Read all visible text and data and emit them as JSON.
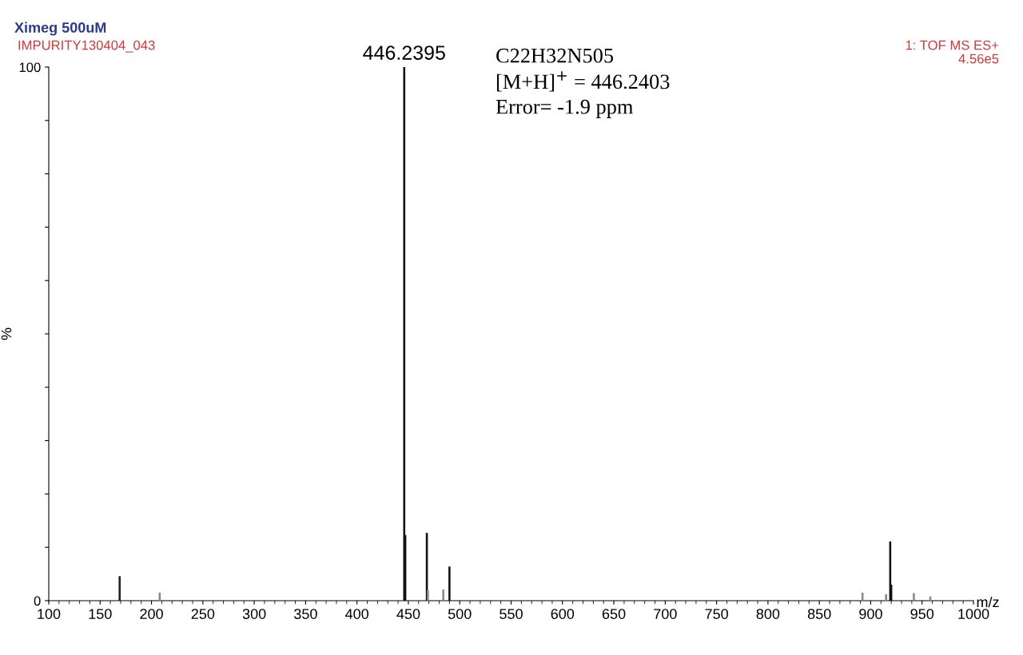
{
  "chart_data": {
    "type": "bar",
    "title": "Ximeg 500uM",
    "subtitle": "IMPURITY130404_043",
    "xlabel": "m/z",
    "ylabel": "%",
    "x": [
      169,
      208,
      446,
      447,
      468,
      469,
      484,
      490,
      892,
      915,
      919,
      920,
      942,
      958
    ],
    "values": [
      4.6,
      1.5,
      100,
      12.3,
      12.7,
      2,
      2.1,
      6.4,
      1.5,
      1.2,
      11.1,
      3,
      1.4,
      0.8
    ],
    "colors": [
      "#222222",
      "#888888",
      "#111111",
      "#111111",
      "#111111",
      "#888888",
      "#888888",
      "#111111",
      "#888888",
      "#888888",
      "#111111",
      "#111111",
      "#888888",
      "#888888"
    ],
    "xlim": [
      100,
      1000
    ],
    "ylim": [
      0,
      100
    ],
    "xticks": [
      100,
      150,
      200,
      250,
      300,
      350,
      400,
      450,
      500,
      550,
      600,
      650,
      700,
      750,
      800,
      850,
      900,
      950,
      1000
    ],
    "yticks": [
      0,
      {
        "value": 10,
        "label": null
      },
      {
        "value": 20,
        "label": null
      },
      {
        "value": 30,
        "label": null
      },
      {
        "value": 40,
        "label": null
      },
      {
        "value": 50,
        "label": null
      },
      {
        "value": 60,
        "label": null
      },
      {
        "value": 70,
        "label": null
      },
      {
        "value": 80,
        "label": null
      },
      {
        "value": 90,
        "label": null
      },
      100
    ],
    "grid": false,
    "annotations": [
      {
        "text": "446.2395",
        "x": 446,
        "y": 100
      },
      "C22H32N505",
      "[M+H]$^{+}$ = 446.2403",
      "Error= -1.9 ppm",
      "1: TOF MS ES+",
      "4.56e5"
    ]
  }
}
